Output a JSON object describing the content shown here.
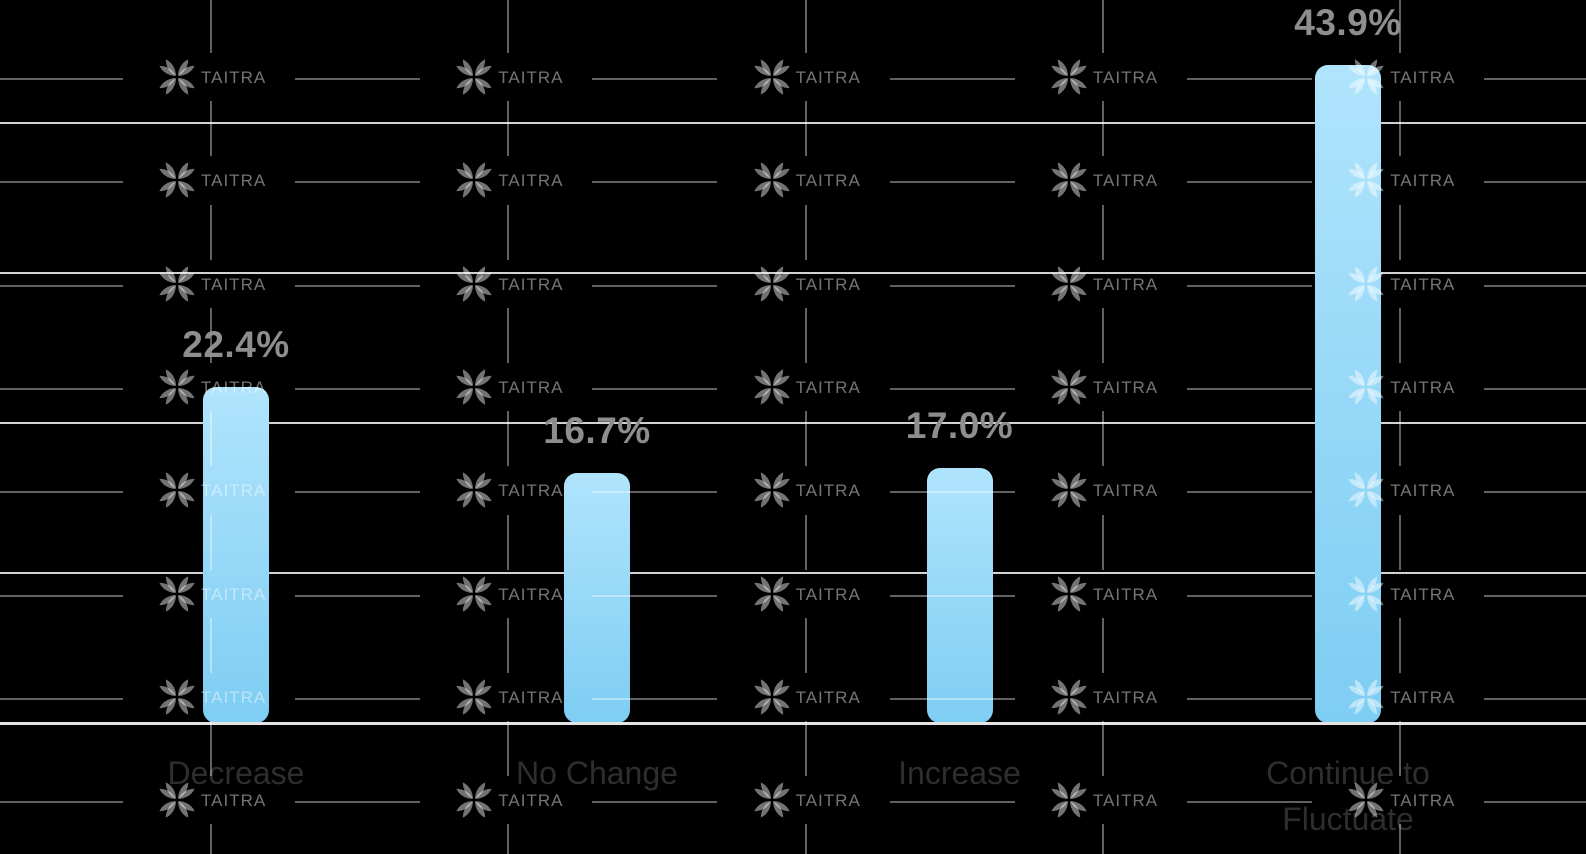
{
  "chart_data": {
    "type": "bar",
    "title": "",
    "xlabel": "",
    "ylabel": "",
    "categories": [
      "Decrease",
      "No Change",
      "Increase",
      "Continue to\nFluctuate"
    ],
    "values": [
      22.4,
      16.7,
      17.0,
      43.9
    ],
    "value_labels": [
      "22.4%",
      "16.7%",
      "17.0%",
      "43.9%"
    ],
    "ylim": [
      0,
      48.2
    ],
    "gridline_step_percent": 10,
    "grid": "horizontal gridlines only, no y-axis tick labels, no legend",
    "legend_position": "none",
    "colors": {
      "background": "#000000",
      "bar_gradient_top": "#b0e4fc",
      "bar_gradient_bottom": "#7ecdf3",
      "gridline": "#d2d2d2",
      "axis_line": "#e4e4e4",
      "value_label": "#8e8e8e",
      "category_label": "#2e2e2e"
    }
  },
  "watermark": {
    "brand_text": "TAITRA",
    "color": "rgba(255,255,255,0.45)",
    "line_color": "rgba(255,255,255,0.38)"
  }
}
